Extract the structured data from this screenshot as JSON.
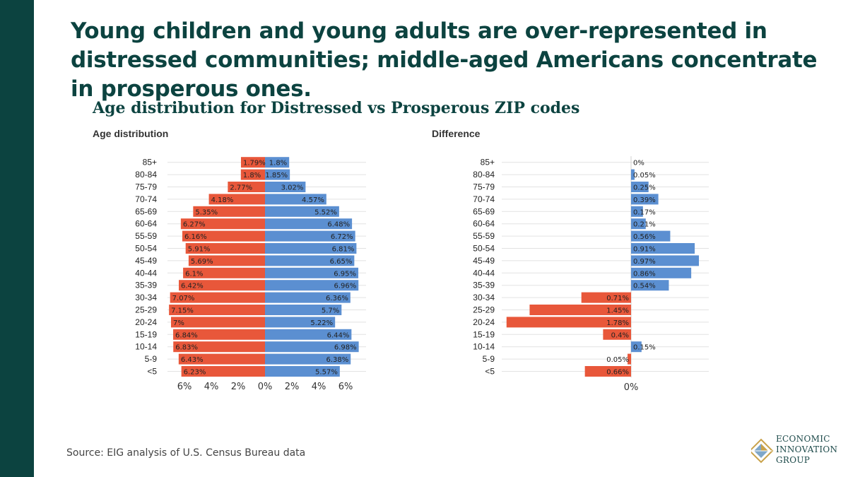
{
  "headline": "Young children and young adults are over-represented in distressed communities; middle-aged Americans concentrate in prosperous ones.",
  "subtitle": "Age distribution for Distressed vs Prosperous ZIP codes",
  "left_label": "Age distribution",
  "right_label": "Difference",
  "source": "Source: EIG analysis of U.S. Census Bureau data",
  "logo": {
    "line1": "ECONOMIC",
    "line2": "INNOVATION",
    "line3": "GROUP",
    "icon": "eig-diamond-logo-icon"
  },
  "colors": {
    "distressed": "#e8573a",
    "prosperous": "#5b8fd1",
    "grid": "#e2e2e2",
    "brand": "#0c4340"
  },
  "chart_data": [
    {
      "type": "bar",
      "orientation": "horizontal",
      "title": "Age distribution",
      "categories": [
        "85+",
        "80-84",
        "75-79",
        "70-74",
        "65-69",
        "60-64",
        "55-59",
        "50-54",
        "45-49",
        "40-44",
        "35-39",
        "30-34",
        "25-29",
        "20-24",
        "15-19",
        "10-14",
        "5-9",
        "<5"
      ],
      "series": [
        {
          "name": "Distressed",
          "values": [
            1.79,
            1.8,
            2.77,
            4.18,
            5.35,
            6.27,
            6.16,
            5.91,
            5.69,
            6.1,
            6.42,
            7.07,
            7.15,
            7.0,
            6.84,
            6.83,
            6.43,
            6.23
          ],
          "labels": [
            "1.79%",
            "1.8%",
            "2.77%",
            "4.18%",
            "5.35%",
            "6.27%",
            "6.16%",
            "5.91%",
            "5.69%",
            "6.1%",
            "6.42%",
            "7.07%",
            "7.15%",
            "7%",
            "6.84%",
            "6.83%",
            "6.43%",
            "6.23%"
          ]
        },
        {
          "name": "Prosperous",
          "values": [
            1.8,
            1.85,
            3.02,
            4.57,
            5.52,
            6.48,
            6.72,
            6.81,
            6.65,
            6.95,
            6.96,
            6.36,
            5.7,
            5.22,
            6.44,
            6.98,
            6.38,
            5.57
          ],
          "labels": [
            "1.8%",
            "1.85%",
            "3.02%",
            "4.57%",
            "5.52%",
            "6.48%",
            "6.72%",
            "6.81%",
            "6.65%",
            "6.95%",
            "6.96%",
            "6.36%",
            "5.7%",
            "5.22%",
            "6.44%",
            "6.98%",
            "6.38%",
            "5.57%"
          ]
        }
      ],
      "xticks": [
        -6,
        -4,
        -2,
        0,
        2,
        4,
        6
      ],
      "xtick_labels": [
        "6%",
        "4%",
        "2%",
        "0%",
        "2%",
        "4%",
        "6%"
      ],
      "xlim": [
        -7.5,
        7.5
      ]
    },
    {
      "type": "bar",
      "orientation": "horizontal",
      "title": "Difference",
      "categories": [
        "85+",
        "80-84",
        "75-79",
        "70-74",
        "65-69",
        "60-64",
        "55-59",
        "50-54",
        "45-49",
        "40-44",
        "35-39",
        "30-34",
        "25-29",
        "20-24",
        "15-19",
        "10-14",
        "5-9",
        "<5"
      ],
      "values": [
        0,
        0.05,
        0.25,
        0.39,
        0.17,
        0.21,
        0.56,
        0.91,
        0.97,
        0.86,
        0.54,
        -0.71,
        -1.45,
        -1.78,
        -0.4,
        0.15,
        -0.05,
        -0.66
      ],
      "labels": [
        "0%",
        "0.05%",
        "0.25%",
        "0.39%",
        "0.17%",
        "0.21%",
        "0.56%",
        "0.91%",
        "0.97%",
        "0.86%",
        "0.54%",
        "0.71%",
        "1.45%",
        "1.78%",
        "0.4%",
        "0.15%",
        "0.05%",
        "0.66%"
      ],
      "xticks": [
        0
      ],
      "xtick_labels": [
        "0%"
      ],
      "xlim": [
        -1.8,
        1.1
      ]
    }
  ]
}
